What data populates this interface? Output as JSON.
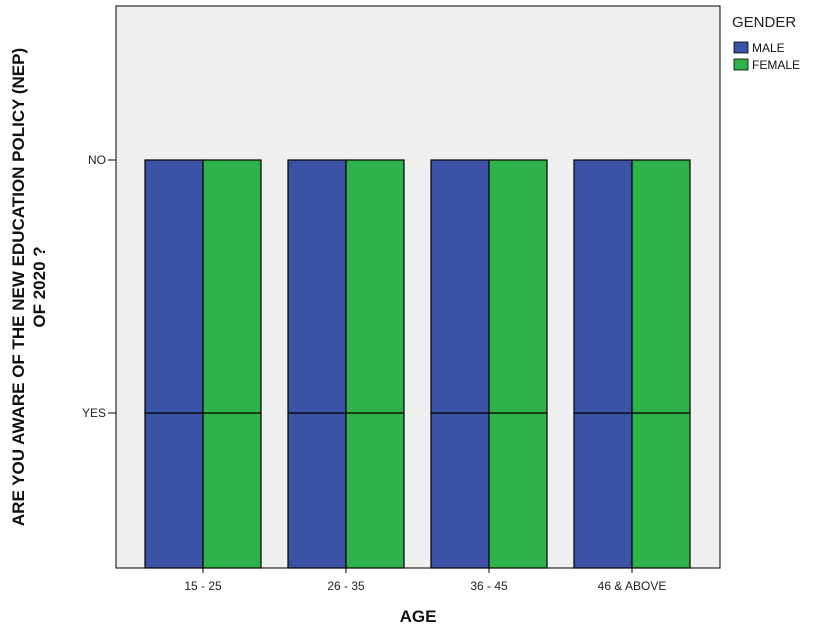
{
  "chart_data": {
    "type": "bar",
    "xlabel": "AGE",
    "ylabel_lines": [
      "ARE YOU AWARE OF THE NEW EDUCATION POLICY (NEP)",
      "OF 2020 ?"
    ],
    "categories": [
      "15 - 25",
      "26 - 35",
      "36 - 45",
      "46 & ABOVE"
    ],
    "y_categories": [
      "YES",
      "NO"
    ],
    "series": [
      {
        "name": "MALE",
        "color": "#3a53a4",
        "segments": [
          [
            "YES",
            "NO"
          ],
          [
            "YES",
            "NO"
          ],
          [
            "YES",
            "NO"
          ],
          [
            "YES",
            "NO"
          ]
        ]
      },
      {
        "name": "FEMALE",
        "color": "#2db34a",
        "segments": [
          [
            "YES",
            "NO"
          ],
          [
            "YES",
            "NO"
          ],
          [
            "YES",
            "NO"
          ],
          [
            "YES",
            "NO"
          ]
        ]
      }
    ],
    "legend": {
      "title": "GENDER",
      "placement": "top-right"
    },
    "plot_background": "#efefef",
    "grid": false
  }
}
